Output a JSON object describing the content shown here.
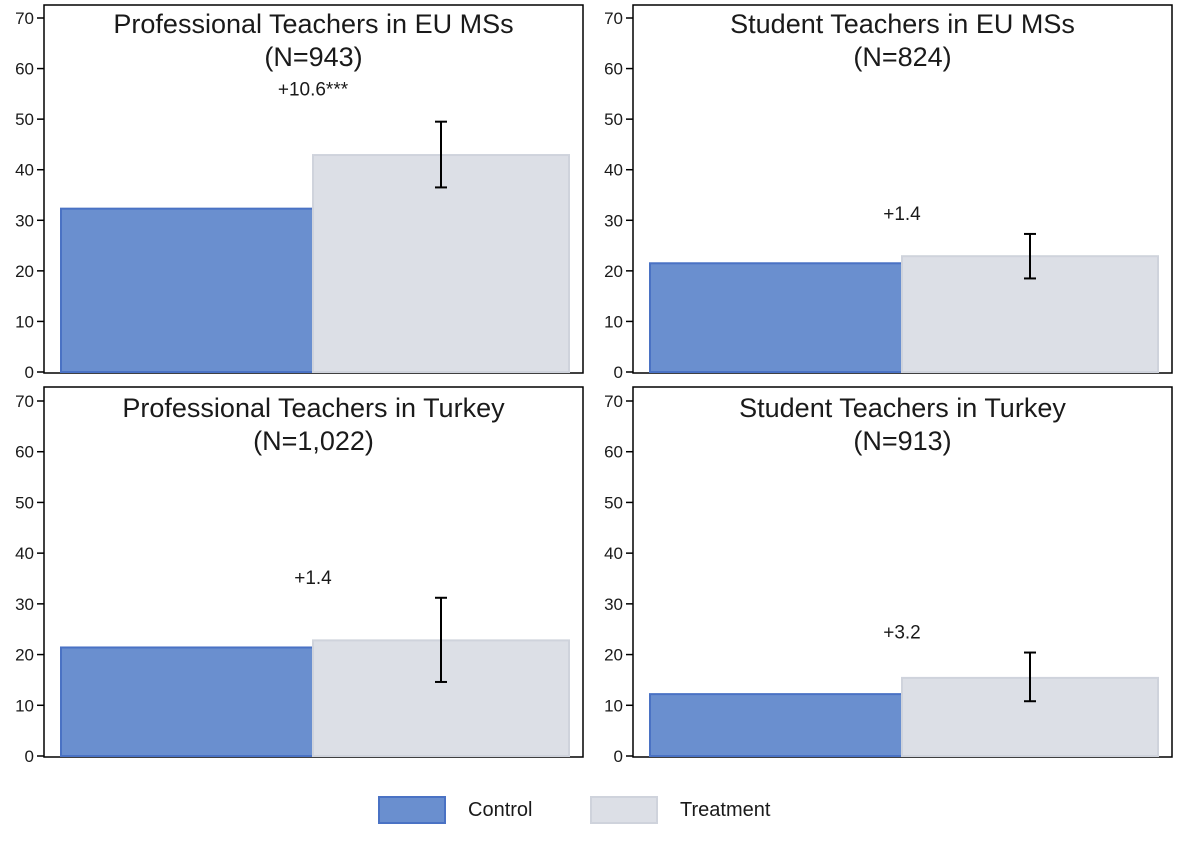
{
  "chart_data": [
    {
      "type": "bar",
      "title": "Professional Teachers in EU MSs",
      "subtitle": "(N=943)",
      "categories": [
        "Control",
        "Treatment"
      ],
      "values": [
        32.3,
        42.9
      ],
      "error_bar": {
        "series": "Treatment",
        "low": 36.5,
        "high": 49.5
      },
      "annotation": "+10.6***",
      "ylim": [
        0,
        70
      ],
      "yticks": [
        0,
        10,
        20,
        30,
        40,
        50,
        60,
        70
      ]
    },
    {
      "type": "bar",
      "title": "Student Teachers in EU MSs",
      "subtitle": "(N=824)",
      "categories": [
        "Control",
        "Treatment"
      ],
      "values": [
        21.5,
        22.9
      ],
      "error_bar": {
        "series": "Treatment",
        "low": 18.5,
        "high": 27.3
      },
      "annotation": "+1.4",
      "ylim": [
        0,
        70
      ],
      "yticks": [
        0,
        10,
        20,
        30,
        40,
        50,
        60,
        70
      ]
    },
    {
      "type": "bar",
      "title": "Professional Teachers in Turkey",
      "subtitle": "(N=1,022)",
      "categories": [
        "Control",
        "Treatment"
      ],
      "values": [
        21.4,
        22.8
      ],
      "error_bar": {
        "series": "Treatment",
        "low": 14.6,
        "high": 31.2
      },
      "annotation": "+1.4",
      "ylim": [
        0,
        70
      ],
      "yticks": [
        0,
        10,
        20,
        30,
        40,
        50,
        60,
        70
      ]
    },
    {
      "type": "bar",
      "title": "Student Teachers in Turkey",
      "subtitle": "(N=913)",
      "categories": [
        "Control",
        "Treatment"
      ],
      "values": [
        12.2,
        15.4
      ],
      "error_bar": {
        "series": "Treatment",
        "low": 10.8,
        "high": 20.4
      },
      "annotation": "+3.2",
      "ylim": [
        0,
        70
      ],
      "yticks": [
        0,
        10,
        20,
        30,
        40,
        50,
        60,
        70
      ]
    }
  ],
  "legend": {
    "placement": "bottom",
    "items": [
      {
        "label": "Control",
        "fill": "#6a8fcf",
        "stroke": "#4a72c4"
      },
      {
        "label": "Treatment",
        "fill": "#dcdfe6",
        "stroke": "#cfd3dc"
      }
    ]
  },
  "colors": {
    "control_fill": "#6a8fcf",
    "control_stroke": "#4a72c4",
    "treatment_fill": "#dcdfe6",
    "treatment_stroke": "#cfd3dc",
    "axis": "#000000"
  }
}
